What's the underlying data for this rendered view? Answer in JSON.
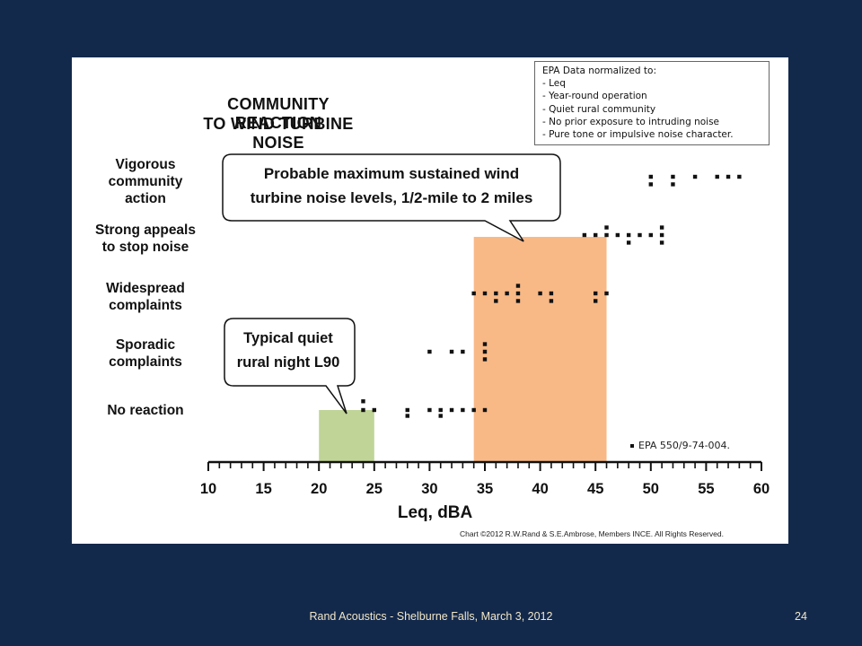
{
  "chart_data": {
    "type": "scatter",
    "title_lines": [
      "COMMUNITY REACTION",
      "TO WIND TURBINE NOISE"
    ],
    "xlabel": "Leq, dBA",
    "xlim": [
      10,
      60
    ],
    "x_ticks": [
      "10",
      "15",
      "20",
      "25",
      "30",
      "35",
      "40",
      "45",
      "50",
      "55",
      "60"
    ],
    "reaction_levels": [
      "No reaction",
      "Sporadic complaints",
      "Widespread complaints",
      "Strong appeals to stop noise",
      "Vigorous community action"
    ],
    "y_category_labels": [
      {
        "level": "Vigorous community action",
        "lines": [
          "Vigorous",
          "community",
          "action"
        ]
      },
      {
        "level": "Strong appeals to stop noise",
        "lines": [
          "Strong appeals",
          "to stop noise"
        ]
      },
      {
        "level": "Widespread complaints",
        "lines": [
          "Widespread",
          "complaints"
        ]
      },
      {
        "level": "Sporadic complaints",
        "lines": [
          "Sporadic",
          "complaints"
        ]
      },
      {
        "level": "No reaction",
        "lines": [
          "No reaction"
        ]
      }
    ],
    "shaded_ranges": [
      {
        "x_start": 20,
        "x_end": 25,
        "color": "#c0d498"
      },
      {
        "x_start": 34,
        "x_end": 46,
        "color": "#f8b987"
      }
    ],
    "points": [
      {
        "x": 24,
        "y": 0,
        "level": "No reaction"
      },
      {
        "x": 24,
        "y": 0.15,
        "level": "No reaction"
      },
      {
        "x": 25,
        "y": 0,
        "level": "No reaction"
      },
      {
        "x": 28,
        "y": 0,
        "level": "No reaction"
      },
      {
        "x": 28,
        "y": -0.1,
        "level": "No reaction"
      },
      {
        "x": 30,
        "y": 0,
        "level": "No reaction"
      },
      {
        "x": 31,
        "y": 0,
        "level": "No reaction"
      },
      {
        "x": 31,
        "y": -0.1,
        "level": "No reaction"
      },
      {
        "x": 32,
        "y": 0,
        "level": "No reaction"
      },
      {
        "x": 33,
        "y": 0,
        "level": "No reaction"
      },
      {
        "x": 34,
        "y": 0,
        "level": "No reaction"
      },
      {
        "x": 35,
        "y": 0,
        "level": "No reaction"
      },
      {
        "x": 30,
        "y": 1,
        "level": "Sporadic complaints"
      },
      {
        "x": 32,
        "y": 1,
        "level": "Sporadic complaints"
      },
      {
        "x": 33,
        "y": 1,
        "level": "Sporadic complaints"
      },
      {
        "x": 35,
        "y": 1,
        "level": "Sporadic complaints"
      },
      {
        "x": 35,
        "y": 1.13,
        "level": "Sporadic complaints"
      },
      {
        "x": 35,
        "y": 0.87,
        "level": "Sporadic complaints"
      },
      {
        "x": 34,
        "y": 2,
        "level": "Widespread complaints"
      },
      {
        "x": 35,
        "y": 2,
        "level": "Widespread complaints"
      },
      {
        "x": 36,
        "y": 2,
        "level": "Widespread complaints"
      },
      {
        "x": 36,
        "y": 1.87,
        "level": "Widespread complaints"
      },
      {
        "x": 37,
        "y": 2,
        "level": "Widespread complaints"
      },
      {
        "x": 38,
        "y": 2,
        "level": "Widespread complaints"
      },
      {
        "x": 38,
        "y": 2.13,
        "level": "Widespread complaints"
      },
      {
        "x": 38,
        "y": 1.87,
        "level": "Widespread complaints"
      },
      {
        "x": 40,
        "y": 2,
        "level": "Widespread complaints"
      },
      {
        "x": 41,
        "y": 2,
        "level": "Widespread complaints"
      },
      {
        "x": 41,
        "y": 1.87,
        "level": "Widespread complaints"
      },
      {
        "x": 45,
        "y": 2,
        "level": "Widespread complaints"
      },
      {
        "x": 45,
        "y": 1.87,
        "level": "Widespread complaints"
      },
      {
        "x": 46,
        "y": 2,
        "level": "Widespread complaints"
      },
      {
        "x": 44,
        "y": 3,
        "level": "Strong appeals to stop noise"
      },
      {
        "x": 45,
        "y": 3,
        "level": "Strong appeals to stop noise"
      },
      {
        "x": 46,
        "y": 3,
        "level": "Strong appeals to stop noise"
      },
      {
        "x": 46,
        "y": 3.13,
        "level": "Strong appeals to stop noise"
      },
      {
        "x": 47,
        "y": 3,
        "level": "Strong appeals to stop noise"
      },
      {
        "x": 48,
        "y": 3,
        "level": "Strong appeals to stop noise"
      },
      {
        "x": 48,
        "y": 2.87,
        "level": "Strong appeals to stop noise"
      },
      {
        "x": 49,
        "y": 3,
        "level": "Strong appeals to stop noise"
      },
      {
        "x": 50,
        "y": 3,
        "level": "Strong appeals to stop noise"
      },
      {
        "x": 51,
        "y": 3,
        "level": "Strong appeals to stop noise"
      },
      {
        "x": 51,
        "y": 3.13,
        "level": "Strong appeals to stop noise"
      },
      {
        "x": 51,
        "y": 2.87,
        "level": "Strong appeals to stop noise"
      },
      {
        "x": 50,
        "y": 4,
        "level": "Vigorous community action"
      },
      {
        "x": 50,
        "y": 3.87,
        "level": "Vigorous community action"
      },
      {
        "x": 52,
        "y": 4,
        "level": "Vigorous community action"
      },
      {
        "x": 52,
        "y": 3.87,
        "level": "Vigorous community action"
      },
      {
        "x": 54,
        "y": 4,
        "level": "Vigorous community action"
      },
      {
        "x": 56,
        "y": 4,
        "level": "Vigorous community action"
      },
      {
        "x": 57,
        "y": 4,
        "level": "Vigorous community action"
      },
      {
        "x": 58,
        "y": 4,
        "level": "Vigorous community action"
      }
    ],
    "callouts": [
      {
        "lines": [
          "Typical quiet",
          "rural night L90"
        ],
        "points_to_x": 22.5
      },
      {
        "lines": [
          "Probable maximum sustained wind",
          "turbine noise levels, 1/2-mile to 2 miles"
        ],
        "points_to_x": 38.5
      }
    ],
    "note_box": [
      "EPA Data normalized to:",
      "- Leq",
      "- Year-round operation",
      "- Quiet rural community",
      "- No prior exposure to intruding noise",
      "- Pure tone or impulsive noise character."
    ],
    "source_note": "EPA 550/9-74-004.",
    "copyright": "Chart ©2012 R.W.Rand & S.E.Ambrose, Members INCE. All Rights Reserved."
  },
  "footer": {
    "text": "Rand Acoustics - Shelburne Falls, March 3, 2012",
    "page": "24"
  },
  "colors": {
    "background": "#13294b",
    "quiet_range": "#c0d498",
    "turbine_range": "#f8b987",
    "footer_text": "#f2e7c8"
  }
}
